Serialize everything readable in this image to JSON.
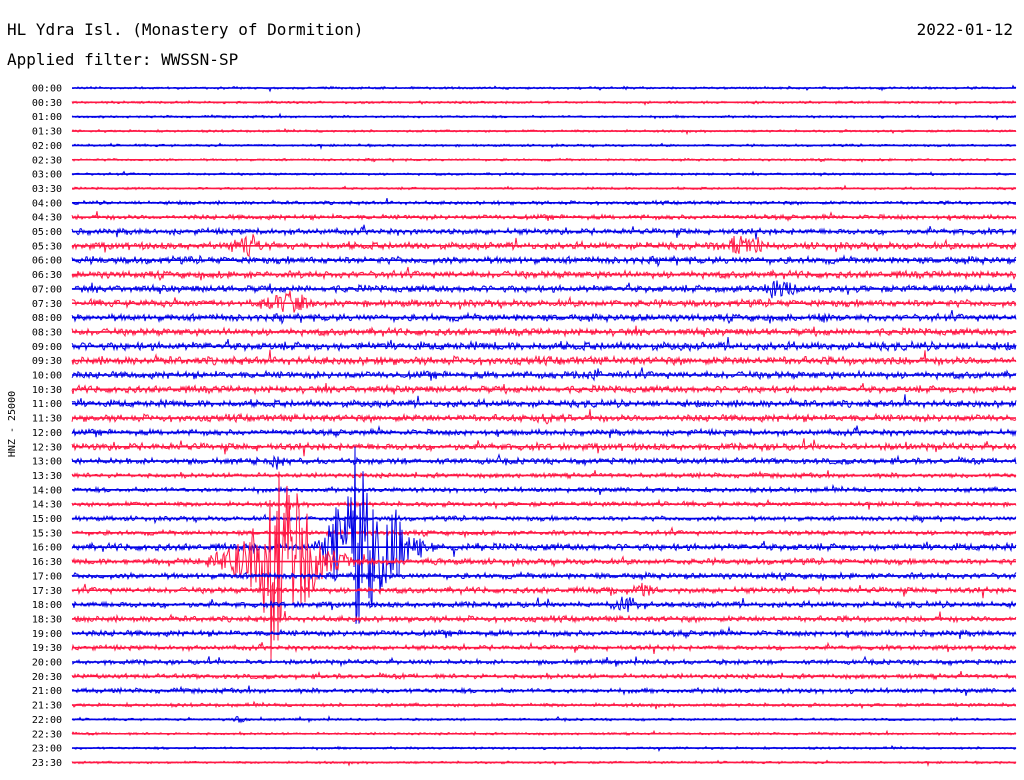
{
  "header": {
    "station": "HL Ydra Isl. (Monastery of Dormition)",
    "date": "2022-01-12",
    "filter_label": "Applied filter:",
    "filter_value": "WWSSN-SP"
  },
  "chart_data": {
    "type": "line",
    "ylabel": "HNZ - 25000",
    "colors": {
      "even_rows": "#0000e6",
      "odd_rows": "#ff1744"
    },
    "rows": [
      "00:00",
      "00:30",
      "01:00",
      "01:30",
      "02:00",
      "02:30",
      "03:00",
      "03:30",
      "04:00",
      "04:30",
      "05:00",
      "05:30",
      "06:00",
      "06:30",
      "07:00",
      "07:30",
      "08:00",
      "08:30",
      "09:00",
      "09:30",
      "10:00",
      "10:30",
      "11:00",
      "11:30",
      "12:00",
      "12:30",
      "13:00",
      "13:30",
      "14:00",
      "14:30",
      "15:00",
      "15:30",
      "16:00",
      "16:30",
      "17:00",
      "17:30",
      "18:00",
      "18:30",
      "19:00",
      "19:30",
      "20:00",
      "20:30",
      "21:00",
      "21:30",
      "22:00",
      "22:30",
      "23:00",
      "23:30"
    ],
    "noise_level": [
      1,
      1,
      1,
      1,
      1,
      1,
      1,
      1,
      1.5,
      2,
      2.5,
      3,
      3,
      3,
      3,
      3,
      3,
      3,
      3.5,
      3.5,
      3,
      3,
      3,
      3,
      2.5,
      3,
      2.5,
      2,
      2,
      2,
      2,
      2,
      3,
      2.5,
      2.5,
      2.5,
      2.5,
      2.5,
      2.5,
      2,
      2,
      2,
      2,
      1.5,
      1,
      1,
      1,
      1
    ],
    "events": [
      {
        "row": "05:30",
        "minute": 5.6,
        "amplitude": 14,
        "duration_min": 1.2
      },
      {
        "row": "05:30",
        "minute": 21.4,
        "amplitude": 16,
        "duration_min": 1.3
      },
      {
        "row": "07:00",
        "minute": 22.5,
        "amplitude": 12,
        "duration_min": 1.2
      },
      {
        "row": "07:30",
        "minute": 6.8,
        "amplitude": 14,
        "duration_min": 1.5
      },
      {
        "row": "08:00",
        "minute": 24.0,
        "amplitude": 8,
        "duration_min": 0.8
      },
      {
        "row": "10:00",
        "minute": 16.6,
        "amplitude": 10,
        "duration_min": 0.6
      },
      {
        "row": "11:30",
        "minute": 15.0,
        "amplitude": 8,
        "duration_min": 0.8
      },
      {
        "row": "13:00",
        "minute": 6.5,
        "amplitude": 10,
        "duration_min": 0.5
      },
      {
        "row": "16:00",
        "minute": 9.0,
        "amplitude": 110,
        "duration_min": 1.6
      },
      {
        "row": "16:00",
        "minute": 9.5,
        "amplitude": 60,
        "duration_min": 2.5
      },
      {
        "row": "16:30",
        "minute": 6.7,
        "amplitude": 130,
        "duration_min": 1.8
      },
      {
        "row": "16:30",
        "minute": 6.5,
        "amplitude": 40,
        "duration_min": 3.5
      },
      {
        "row": "17:30",
        "minute": 18.2,
        "amplitude": 10,
        "duration_min": 0.8
      },
      {
        "row": "18:00",
        "minute": 17.6,
        "amplitude": 10,
        "duration_min": 1.2
      },
      {
        "row": "22:00",
        "minute": 5.3,
        "amplitude": 5,
        "duration_min": 0.5
      }
    ]
  }
}
